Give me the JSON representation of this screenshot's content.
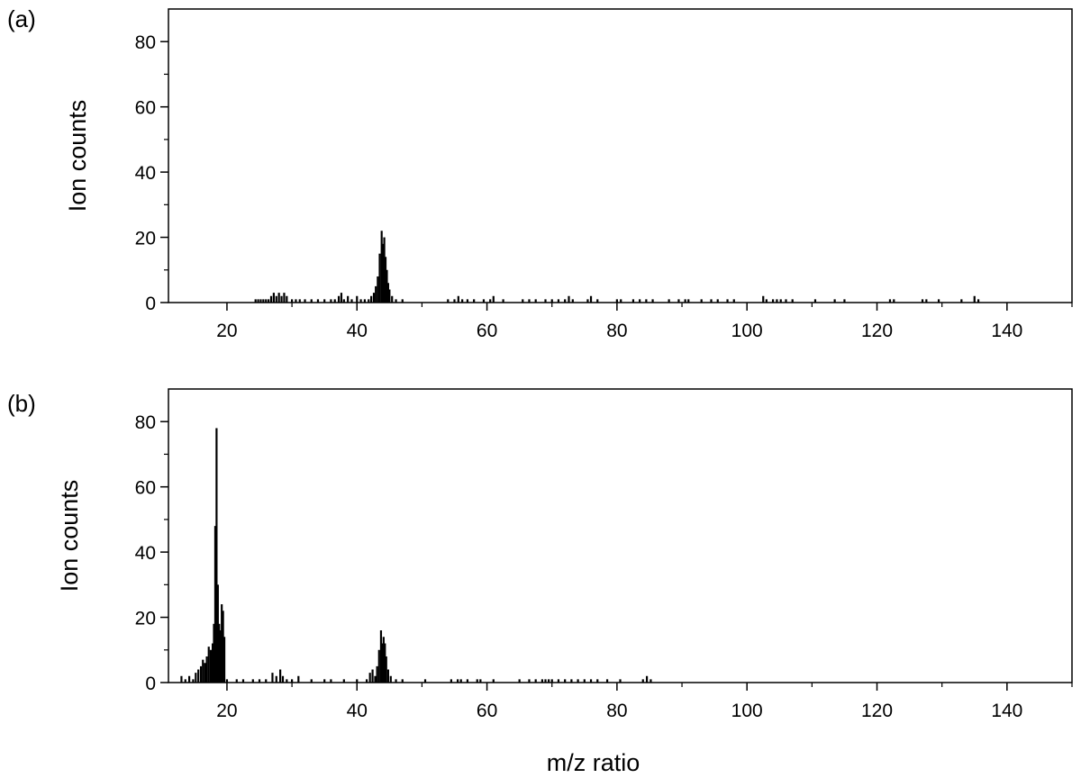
{
  "colors": {
    "bars": "#000000",
    "axes": "#000000",
    "background": "#ffffff"
  },
  "chart_data": [
    {
      "type": "bar",
      "panel_label": "(a)",
      "ylabel": "Ion counts",
      "xlabel": "",
      "xlim": [
        11,
        150
      ],
      "ylim": [
        0,
        90
      ],
      "x_ticks": [
        20,
        40,
        60,
        80,
        100,
        120,
        140
      ],
      "y_ticks": [
        0,
        20,
        40,
        60,
        80
      ],
      "grid": false,
      "x": [
        24.4,
        24.8,
        25.2,
        25.6,
        26.0,
        26.4,
        26.8,
        27.2,
        27.6,
        28.0,
        28.4,
        28.8,
        29.2,
        30.0,
        30.6,
        31.2,
        32.0,
        33.0,
        34.0,
        35.0,
        36.0,
        36.6,
        37.2,
        37.6,
        38.0,
        38.6,
        39.2,
        40.0,
        40.6,
        41.2,
        41.8,
        42.2,
        42.6,
        42.9,
        43.2,
        43.5,
        43.8,
        44.0,
        44.2,
        44.4,
        44.6,
        44.8,
        45.0,
        45.4,
        46.0,
        47.0,
        54.0,
        55.0,
        55.6,
        56.2,
        57.0,
        58.0,
        59.5,
        60.5,
        61.0,
        62.5,
        65.5,
        66.5,
        67.5,
        69.0,
        70.0,
        71.0,
        72.0,
        72.6,
        73.2,
        75.5,
        76.0,
        77.0,
        80.0,
        80.6,
        82.5,
        83.5,
        84.5,
        85.5,
        88.0,
        89.5,
        90.5,
        91.0,
        93.0,
        94.5,
        95.5,
        97.0,
        98.0,
        102.5,
        103.0,
        104.0,
        104.6,
        105.2,
        106.0,
        107.0,
        110.5,
        113.5,
        115.0,
        122.0,
        122.6,
        127.0,
        127.6,
        129.5,
        133.0,
        135.0,
        135.6
      ],
      "values": [
        1,
        1,
        1,
        1,
        1,
        1,
        2,
        3,
        2,
        3,
        2,
        3,
        2,
        1,
        1,
        1,
        1,
        1,
        1,
        1,
        1,
        1,
        2,
        3,
        1,
        2,
        1,
        2,
        1,
        1,
        1,
        2,
        3,
        5,
        8,
        15,
        22,
        18,
        20,
        14,
        10,
        6,
        4,
        2,
        1,
        1,
        1,
        1,
        2,
        1,
        1,
        1,
        1,
        1,
        2,
        1,
        1,
        1,
        1,
        1,
        1,
        1,
        1,
        2,
        1,
        1,
        2,
        1,
        1,
        1,
        1,
        1,
        1,
        1,
        1,
        1,
        1,
        1,
        1,
        1,
        1,
        1,
        1,
        2,
        1,
        1,
        1,
        1,
        1,
        1,
        1,
        1,
        1,
        1,
        1,
        1,
        1,
        1,
        1,
        2,
        1
      ]
    },
    {
      "type": "bar",
      "panel_label": "(b)",
      "ylabel": "Ion counts",
      "xlabel": "m/z ratio",
      "xlim": [
        11,
        150
      ],
      "ylim": [
        0,
        90
      ],
      "x_ticks": [
        20,
        40,
        60,
        80,
        100,
        120,
        140
      ],
      "y_ticks": [
        0,
        20,
        40,
        60,
        80
      ],
      "grid": false,
      "x": [
        13.0,
        13.6,
        14.2,
        14.8,
        15.2,
        15.6,
        16.0,
        16.3,
        16.6,
        16.9,
        17.2,
        17.5,
        17.8,
        18.0,
        18.2,
        18.4,
        18.6,
        18.8,
        19.0,
        19.2,
        19.4,
        19.6,
        20.0,
        21.5,
        22.5,
        24.0,
        25.0,
        26.0,
        27.0,
        27.6,
        28.2,
        28.6,
        29.2,
        30.0,
        31.0,
        33.0,
        35.0,
        36.0,
        38.0,
        40.0,
        41.5,
        42.0,
        42.4,
        42.8,
        43.1,
        43.4,
        43.7,
        43.9,
        44.1,
        44.3,
        44.5,
        44.8,
        45.2,
        46.0,
        47.0,
        50.5,
        54.5,
        55.5,
        56.0,
        57.0,
        58.5,
        59.0,
        61.0,
        65.0,
        66.5,
        67.5,
        68.5,
        69.0,
        69.5,
        70.0,
        71.0,
        72.0,
        73.0,
        74.0,
        75.0,
        76.0,
        77.0,
        78.5,
        80.5,
        84.0,
        84.6,
        85.2
      ],
      "values": [
        2,
        1,
        2,
        1,
        3,
        4,
        5,
        7,
        6,
        8,
        11,
        10,
        12,
        18,
        48,
        78,
        30,
        18,
        16,
        24,
        22,
        14,
        1,
        1,
        1,
        1,
        1,
        1,
        3,
        2,
        4,
        2,
        1,
        1,
        2,
        1,
        1,
        1,
        1,
        1,
        1,
        3,
        4,
        2,
        5,
        10,
        16,
        12,
        14,
        12,
        8,
        4,
        2,
        1,
        1,
        1,
        1,
        1,
        1,
        1,
        1,
        1,
        1,
        1,
        1,
        1,
        1,
        1,
        1,
        1,
        1,
        1,
        1,
        1,
        1,
        1,
        1,
        1,
        1,
        1,
        2,
        1
      ]
    }
  ]
}
